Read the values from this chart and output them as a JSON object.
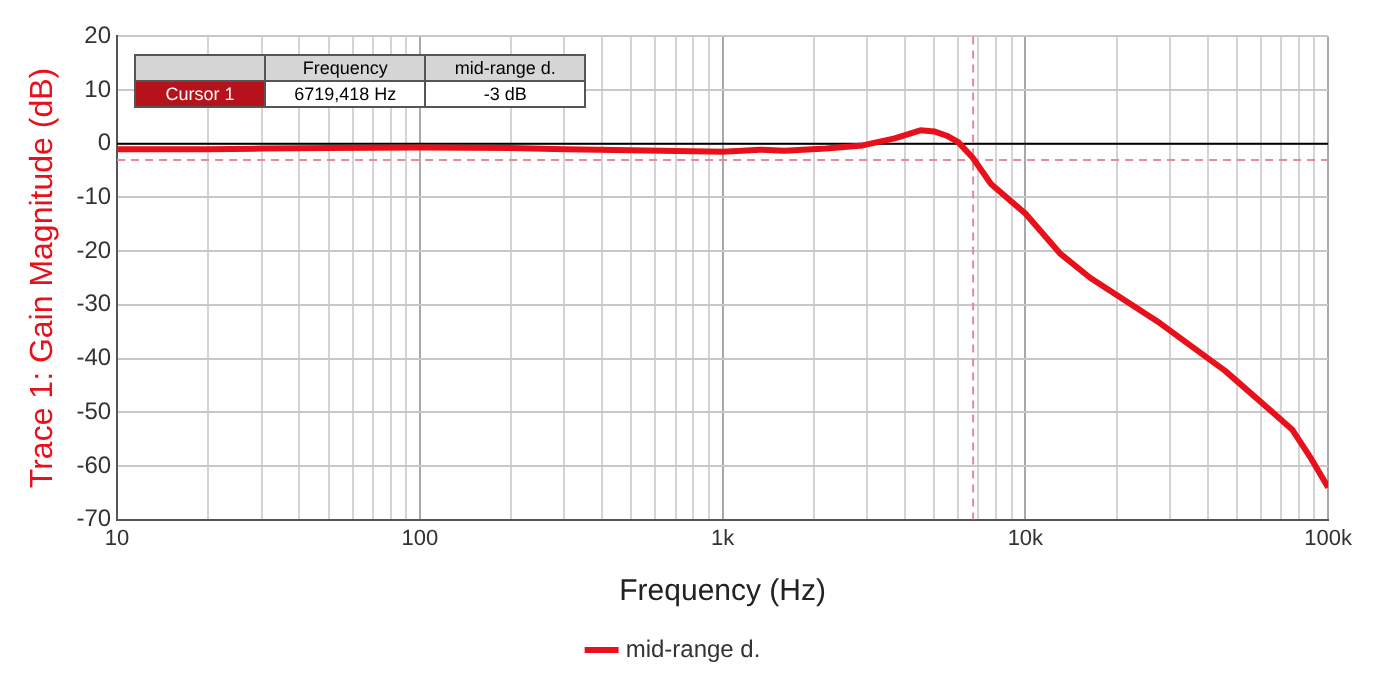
{
  "chart_data": {
    "type": "line",
    "xlabel": "Frequency (Hz)",
    "ylabel": "Trace 1: Gain Magnitude (dB)",
    "series": [
      {
        "name": "mid-range d.",
        "color": "#e8101a",
        "x": [
          10,
          20,
          30,
          50,
          100,
          200,
          300,
          500,
          1000,
          1330,
          1600,
          2200,
          2900,
          3700,
          4500,
          5000,
          5500,
          6000,
          6700,
          7700,
          10000,
          13000,
          16400,
          27800,
          45700,
          76000,
          88000,
          100000
        ],
        "values": [
          -1,
          -1,
          -0.9,
          -0.8,
          -0.7,
          -0.8,
          -1,
          -1.2,
          -1.5,
          -1.1,
          -1.3,
          -0.9,
          -0.3,
          1,
          2.5,
          2.3,
          1.5,
          0.3,
          -2.6,
          -7.5,
          -13,
          -20.4,
          -25,
          -33.4,
          -42.3,
          -53.2,
          -58.7,
          -64
        ]
      }
    ],
    "xlim": [
      10,
      100000
    ],
    "ylim": [
      -70,
      20
    ],
    "log": "x",
    "xticks": [
      {
        "value": 10,
        "label": "10"
      },
      {
        "value": 20,
        "label": null
      },
      {
        "value": 30,
        "label": null
      },
      {
        "value": 40,
        "label": null
      },
      {
        "value": 50,
        "label": null
      },
      {
        "value": 60,
        "label": null
      },
      {
        "value": 70,
        "label": null
      },
      {
        "value": 80,
        "label": null
      },
      {
        "value": 90,
        "label": null
      },
      {
        "value": 100,
        "label": "100"
      },
      {
        "value": 200,
        "label": null
      },
      {
        "value": 300,
        "label": null
      },
      {
        "value": 400,
        "label": null
      },
      {
        "value": 500,
        "label": null
      },
      {
        "value": 600,
        "label": null
      },
      {
        "value": 700,
        "label": null
      },
      {
        "value": 800,
        "label": null
      },
      {
        "value": 900,
        "label": null
      },
      {
        "value": 1000,
        "label": "1k"
      },
      {
        "value": 2000,
        "label": null
      },
      {
        "value": 3000,
        "label": null
      },
      {
        "value": 4000,
        "label": null
      },
      {
        "value": 5000,
        "label": null
      },
      {
        "value": 6000,
        "label": null
      },
      {
        "value": 7000,
        "label": null
      },
      {
        "value": 8000,
        "label": null
      },
      {
        "value": 9000,
        "label": null
      },
      {
        "value": 10000,
        "label": "10k"
      },
      {
        "value": 20000,
        "label": null
      },
      {
        "value": 30000,
        "label": null
      },
      {
        "value": 40000,
        "label": null
      },
      {
        "value": 50000,
        "label": null
      },
      {
        "value": 60000,
        "label": null
      },
      {
        "value": 70000,
        "label": null
      },
      {
        "value": 80000,
        "label": null
      },
      {
        "value": 90000,
        "label": null
      },
      {
        "value": 100000,
        "label": "100k"
      }
    ],
    "yticks": [
      -70,
      -60,
      -50,
      -40,
      -30,
      -20,
      -10,
      0,
      10,
      20
    ],
    "grid": true,
    "legend": "bottom",
    "marker": "none",
    "line_style": "solid",
    "ref_lines": [
      {
        "axis": "y",
        "value": 0,
        "color": "#000000",
        "line_style": "solid"
      },
      {
        "axis": "x",
        "value": 6719.418,
        "color": "#e88a9a",
        "line_style": "dashed"
      },
      {
        "axis": "y",
        "value": -3,
        "color": "#e88a9a",
        "line_style": "dashed"
      }
    ],
    "annotations": [
      "Frequency",
      "mid-range d.",
      "Cursor 1",
      "6719,418 Hz",
      "-3 dB"
    ]
  }
}
